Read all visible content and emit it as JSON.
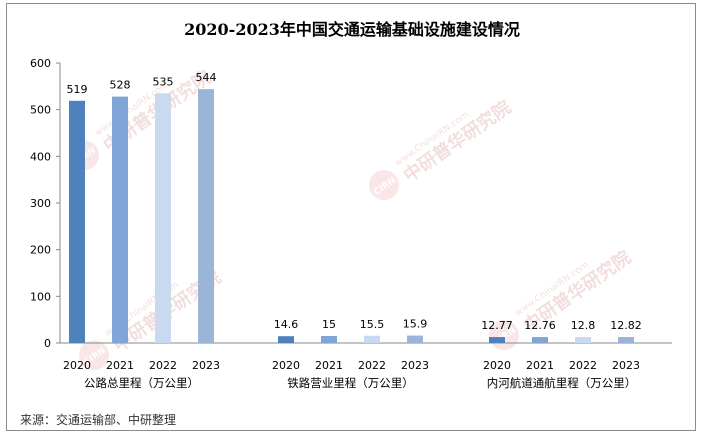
{
  "chart_data": {
    "type": "bar",
    "title": "2020-2023年中国交通运输基础设施建设情况",
    "ylim": [
      0,
      600
    ],
    "yticks": [
      0,
      100,
      200,
      300,
      400,
      500,
      600
    ],
    "grid": false,
    "legend": "none",
    "colors": [
      "#4f81bd",
      "#7fa6d6",
      "#c9daf0",
      "#9bb5d9"
    ],
    "groups": [
      {
        "name": "公路总里程（万公里）",
        "categories": [
          "2020",
          "2021",
          "2022",
          "2023"
        ],
        "values": [
          519,
          528,
          535,
          544
        ],
        "labels": [
          "519",
          "528",
          "535",
          "544"
        ]
      },
      {
        "name": "铁路营业里程（万公里）",
        "categories": [
          "2020",
          "2021",
          "2022",
          "2023"
        ],
        "values": [
          14.6,
          15,
          15.5,
          15.9
        ],
        "labels": [
          "14.6",
          "15",
          "15.5",
          "15.9"
        ]
      },
      {
        "name": "内河航道通航里程（万公里）",
        "categories": [
          "2020",
          "2021",
          "2022",
          "2023"
        ],
        "values": [
          12.77,
          12.76,
          12.8,
          12.82
        ],
        "labels": [
          "12.77",
          "12.76",
          "12.8",
          "12.82"
        ]
      }
    ]
  },
  "source": "来源：交通运输部、中研整理",
  "watermark": {
    "logo_text": "CIRN",
    "url_text": "www.ChinaIRN.com",
    "brand_text": "中研普华研究院"
  }
}
